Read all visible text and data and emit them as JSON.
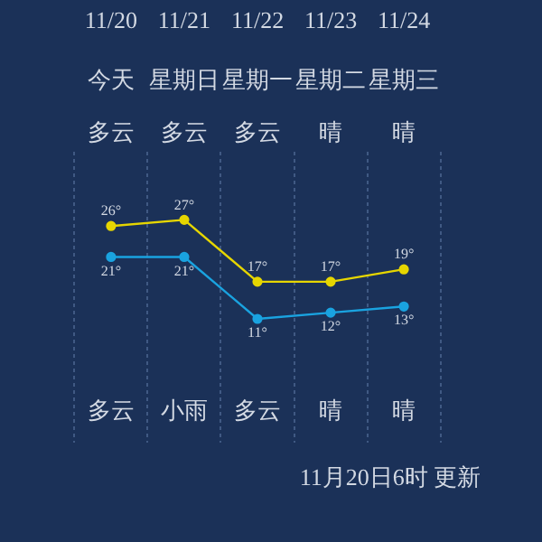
{
  "chart_data": {
    "type": "line",
    "categories": [
      "11/20",
      "11/21",
      "11/22",
      "11/23",
      "11/24"
    ],
    "series": [
      {
        "color": "#e6d600",
        "values": [
          26,
          27,
          17,
          17,
          19
        ],
        "value_labels": [
          "26°",
          "27°",
          "17°",
          "17°",
          "19°"
        ]
      },
      {
        "color": "#1aa3e0",
        "values": [
          21,
          21,
          11,
          12,
          13
        ],
        "value_labels": [
          "21°",
          "21°",
          "11°",
          "12°",
          "13°"
        ]
      }
    ],
    "ylim": [
      -9,
      38
    ],
    "grid": "x",
    "legend": false,
    "tick_labels": "x",
    "marker": "circle",
    "line_style": "solid",
    "annotations": [
      "今天",
      "星期日",
      "星期一",
      "星期二",
      "星期三",
      "多云",
      "多云",
      "多云",
      "晴",
      "晴",
      "多云",
      "小雨",
      "多云",
      "晴",
      "晴",
      "11月20日6时 更新"
    ]
  }
}
